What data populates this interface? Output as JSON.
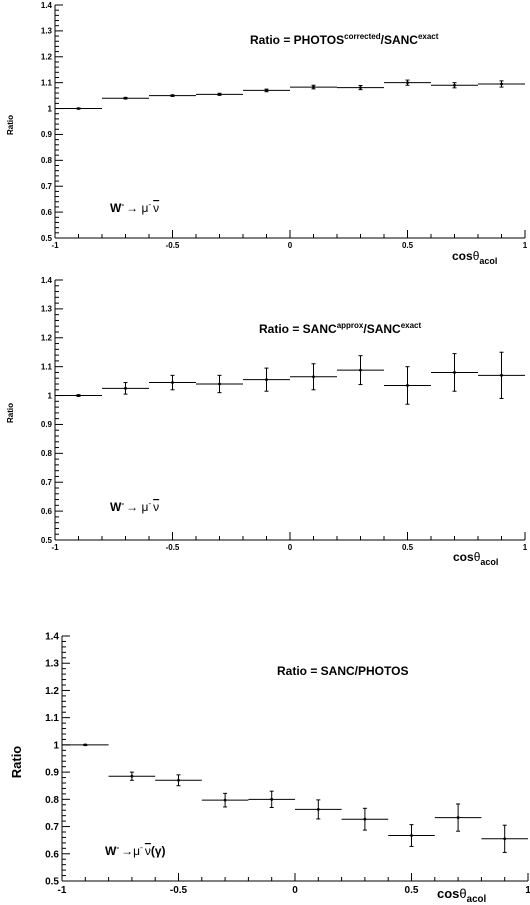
{
  "chart_data": [
    {
      "type": "scatter",
      "title": "Ratio = PHOTOS",
      "title_sup": "corrected",
      "title_mid": "/SANC",
      "title_sup2": "exact",
      "process_base": "W",
      "process_sup": "-",
      "process_rest": "→ μ",
      "process_sup2": "-",
      "process_nu": "ν",
      "process_tail": "",
      "xlabel": "cos",
      "xlabel_theta": "θ",
      "xlabel_sub": "acol",
      "ylabel": "Ratio",
      "xlim": [
        -1,
        1
      ],
      "ylim": [
        0.5,
        1.4
      ],
      "xticks": [
        "-1",
        "-0.5",
        "0",
        "0.5",
        "1"
      ],
      "yticks": [
        "0.5",
        "0.6",
        "0.7",
        "0.8",
        "0.9",
        "1",
        "1.1",
        "1.2",
        "1.3",
        "1.4"
      ],
      "bin_width": 0.2,
      "x": [
        -0.9,
        -0.7,
        -0.5,
        -0.3,
        -0.1,
        0.1,
        0.3,
        0.5,
        0.7,
        0.9
      ],
      "y": [
        1.0,
        1.04,
        1.05,
        1.055,
        1.07,
        1.083,
        1.081,
        1.1,
        1.09,
        1.095
      ],
      "yerr": [
        0.002,
        0.003,
        0.003,
        0.004,
        0.005,
        0.007,
        0.008,
        0.01,
        0.01,
        0.012
      ]
    },
    {
      "type": "scatter",
      "title": "Ratio = SANC",
      "title_sup": "approx",
      "title_mid": "/SANC",
      "title_sup2": "exact",
      "process_base": "W",
      "process_sup": "-",
      "process_rest": "→ μ",
      "process_sup2": "-",
      "process_nu": "ν",
      "process_tail": "",
      "xlabel": "cos",
      "xlabel_theta": "θ",
      "xlabel_sub": "acol",
      "ylabel": "Ratio",
      "xlim": [
        -1,
        1
      ],
      "ylim": [
        0.5,
        1.4
      ],
      "xticks": [
        "-1",
        "-0.5",
        "0",
        "0.5",
        "1"
      ],
      "yticks": [
        "0.5",
        "0.6",
        "0.7",
        "0.8",
        "0.9",
        "1",
        "1.1",
        "1.2",
        "1.3",
        "1.4"
      ],
      "bin_width": 0.2,
      "x": [
        -0.9,
        -0.7,
        -0.5,
        -0.3,
        -0.1,
        0.1,
        0.3,
        0.5,
        0.7,
        0.9
      ],
      "y": [
        1.0,
        1.025,
        1.045,
        1.04,
        1.055,
        1.065,
        1.088,
        1.035,
        1.08,
        1.07
      ],
      "yerr": [
        0.003,
        0.02,
        0.025,
        0.03,
        0.04,
        0.045,
        0.05,
        0.065,
        0.065,
        0.08
      ]
    },
    {
      "type": "scatter",
      "title": "Ratio = SANC/PHOTOS",
      "title_sup": "",
      "title_mid": "",
      "title_sup2": "",
      "process_base": "W",
      "process_sup": "-",
      "process_rest": "→μ",
      "process_sup2": "-",
      "process_nu": "ν",
      "process_tail": "(γ)",
      "xlabel": "cos",
      "xlabel_theta": "θ",
      "xlabel_sub": "acol",
      "ylabel": "Ratio",
      "xlim": [
        -1,
        1
      ],
      "ylim": [
        0.5,
        1.4
      ],
      "xticks": [
        "-1",
        "-0.5",
        "0",
        "0.5",
        "1"
      ],
      "yticks": [
        "0.5",
        "0.6",
        "0.7",
        "0.8",
        "0.9",
        "1",
        "1.1",
        "1.2",
        "1.3",
        "1.4"
      ],
      "bin_width": 0.2,
      "x": [
        -0.9,
        -0.7,
        -0.5,
        -0.3,
        -0.1,
        0.1,
        0.3,
        0.5,
        0.7,
        0.9
      ],
      "y": [
        1.0,
        0.885,
        0.87,
        0.797,
        0.8,
        0.763,
        0.727,
        0.667,
        0.733,
        0.655
      ],
      "yerr": [
        0.002,
        0.015,
        0.02,
        0.025,
        0.03,
        0.035,
        0.04,
        0.04,
        0.05,
        0.05
      ]
    }
  ]
}
